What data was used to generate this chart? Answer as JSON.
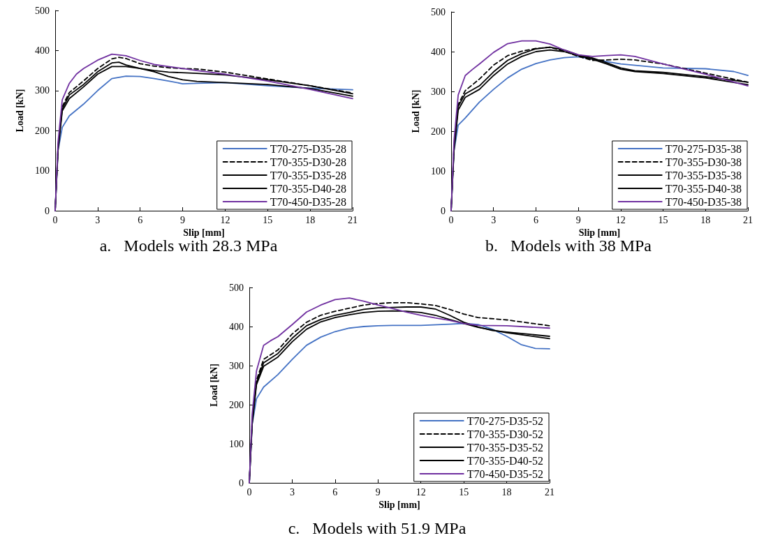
{
  "chart_data": [
    {
      "type": "line",
      "title": "a.   Models with 28.3 MPa",
      "xlabel": "Slip [mm]",
      "ylabel": "Load [kN]",
      "xlim": [
        0,
        21
      ],
      "xticks": [
        0,
        3,
        6,
        9,
        12,
        15,
        18,
        21
      ],
      "ylim": [
        0,
        500
      ],
      "yticks": [
        0,
        100,
        200,
        300,
        400,
        500
      ],
      "grid": false,
      "legend": "bottom right",
      "marker": "none",
      "line_style": "solid",
      "series": [
        {
          "name": "T70-275-D35-28",
          "color": "#4472c4",
          "x": [
            0,
            0.2,
            0.5,
            1,
            2,
            3,
            4,
            5,
            6,
            7,
            8,
            9,
            10,
            12,
            15,
            18,
            21
          ],
          "values": [
            0,
            150,
            208,
            237,
            266,
            300,
            330,
            336,
            335,
            330,
            324,
            317,
            318,
            320,
            312,
            306,
            302
          ]
        },
        {
          "name": "T70-355-D30-28",
          "color": "#000000",
          "line_style": "dashed",
          "x": [
            0,
            0.2,
            0.5,
            1,
            2,
            3,
            4,
            4.5,
            5,
            6,
            7,
            8,
            9,
            10,
            12,
            15,
            18,
            21
          ],
          "values": [
            0,
            160,
            260,
            295,
            324,
            355,
            379,
            383,
            380,
            367,
            361,
            357,
            355,
            354,
            346,
            329,
            312,
            294
          ]
        },
        {
          "name": "T70-355-D35-28",
          "color": "#000000",
          "x": [
            0,
            0.2,
            0.5,
            1,
            2,
            3,
            4,
            4.5,
            5,
            6,
            7,
            8,
            10,
            12,
            15,
            18,
            21
          ],
          "values": [
            0,
            155,
            254,
            289,
            315,
            347,
            369,
            371,
            364,
            355,
            350,
            346,
            343,
            339,
            327,
            312,
            292
          ]
        },
        {
          "name": "T70-355-D40-28",
          "color": "#000000",
          "x": [
            0,
            0.2,
            0.5,
            1,
            2,
            3,
            4,
            5,
            6,
            7,
            8,
            9,
            10,
            12,
            15,
            18,
            21
          ],
          "values": [
            0,
            150,
            249,
            280,
            309,
            341,
            360,
            360,
            355,
            347,
            335,
            327,
            323,
            320,
            315,
            305,
            286
          ]
        },
        {
          "name": "T70-450-D35-28",
          "color": "#7030a0",
          "x": [
            0,
            0.2,
            0.5,
            1,
            1.5,
            2,
            3,
            4,
            5,
            6,
            7,
            8,
            9,
            10,
            12,
            15,
            18,
            21
          ],
          "values": [
            0,
            170,
            277,
            318,
            341,
            355,
            376,
            391,
            387,
            375,
            365,
            360,
            355,
            350,
            341,
            324,
            303,
            280
          ]
        }
      ]
    },
    {
      "type": "line",
      "title": "b.   Models with 38 MPa",
      "xlabel": "Slip [mm]",
      "ylabel": "Load [kN]",
      "xlim": [
        0,
        21
      ],
      "xticks": [
        0,
        3,
        6,
        9,
        12,
        15,
        18,
        21
      ],
      "ylim": [
        0,
        500
      ],
      "yticks": [
        0,
        100,
        200,
        300,
        400,
        500
      ],
      "grid": false,
      "legend": "bottom right",
      "marker": "none",
      "line_style": "solid",
      "series": [
        {
          "name": "T70-275-D35-38",
          "color": "#4472c4",
          "x": [
            0,
            0.2,
            0.5,
            1,
            2,
            3,
            4,
            5,
            6,
            7,
            8,
            9,
            10,
            12,
            15,
            18,
            20,
            21
          ],
          "values": [
            0,
            150,
            215,
            233,
            273,
            305,
            334,
            356,
            370,
            379,
            385,
            387,
            381,
            369,
            359,
            357,
            350,
            340
          ]
        },
        {
          "name": "T70-355-D30-38",
          "color": "#000000",
          "line_style": "dashed",
          "x": [
            0,
            0.2,
            0.5,
            1,
            2,
            3,
            4,
            5,
            6,
            7,
            8,
            9,
            10,
            11,
            12,
            13,
            15,
            18,
            21
          ],
          "values": [
            0,
            160,
            267,
            302,
            331,
            366,
            390,
            401,
            408,
            411,
            401,
            388,
            378,
            379,
            381,
            379,
            369,
            346,
            323
          ]
        },
        {
          "name": "T70-355-D35-38",
          "color": "#000000",
          "x": [
            0,
            0.2,
            0.5,
            1,
            2,
            3,
            4,
            5,
            6,
            7,
            8,
            9,
            10,
            11,
            12,
            13,
            15,
            18,
            21
          ],
          "values": [
            0,
            155,
            262,
            294,
            314,
            349,
            378,
            395,
            407,
            411,
            404,
            392,
            384,
            372,
            359,
            352,
            348,
            337,
            323
          ]
        },
        {
          "name": "T70-355-D40-38",
          "color": "#000000",
          "x": [
            0,
            0.2,
            0.5,
            1,
            2,
            3,
            4,
            5,
            6,
            7,
            8,
            9,
            10,
            11,
            12,
            13,
            15,
            18,
            21
          ],
          "values": [
            0,
            150,
            253,
            285,
            305,
            340,
            369,
            388,
            400,
            404,
            400,
            390,
            381,
            369,
            356,
            350,
            345,
            334,
            317
          ]
        },
        {
          "name": "T70-450-D35-38",
          "color": "#7030a0",
          "x": [
            0,
            0.2,
            0.5,
            1,
            1.5,
            2,
            3,
            4,
            5,
            6,
            7,
            8,
            9,
            10,
            11,
            12,
            13,
            15,
            18,
            21
          ],
          "values": [
            0,
            175,
            291,
            340,
            355,
            369,
            398,
            420,
            427,
            427,
            419,
            404,
            392,
            388,
            390,
            392,
            388,
            369,
            343,
            314
          ]
        }
      ]
    },
    {
      "type": "line",
      "title": "c.   Models with 51.9 MPa",
      "xlabel": "Slip [mm]",
      "ylabel": "Load [kN]",
      "xlim": [
        0,
        21
      ],
      "xticks": [
        0,
        3,
        6,
        9,
        12,
        15,
        18,
        21
      ],
      "ylim": [
        0,
        500
      ],
      "yticks": [
        0,
        100,
        200,
        300,
        400,
        500
      ],
      "grid": false,
      "legend": "bottom right",
      "marker": "none",
      "line_style": "solid",
      "series": [
        {
          "name": "T70-275-D35-52",
          "color": "#4472c4",
          "x": [
            0,
            0.2,
            0.5,
            1,
            2,
            3,
            4,
            5,
            6,
            7,
            8,
            9,
            10,
            12,
            14,
            15,
            16,
            17,
            18,
            19,
            20,
            21
          ],
          "values": [
            0,
            150,
            215,
            245,
            277,
            316,
            352,
            373,
            387,
            396,
            400,
            402,
            403,
            403,
            406,
            408,
            405,
            393,
            375,
            354,
            344,
            343
          ]
        },
        {
          "name": "T70-355-D30-52",
          "color": "#000000",
          "line_style": "dashed",
          "x": [
            0,
            0.2,
            0.5,
            1,
            2,
            3,
            4,
            5,
            6,
            7,
            8,
            9,
            10,
            11,
            12,
            13,
            14,
            15,
            16,
            18,
            21
          ],
          "values": [
            0,
            160,
            262,
            316,
            340,
            381,
            411,
            429,
            439,
            447,
            455,
            459,
            461,
            461,
            458,
            454,
            444,
            432,
            423,
            417,
            402
          ]
        },
        {
          "name": "T70-355-D35-52",
          "color": "#000000",
          "x": [
            0,
            0.2,
            0.5,
            1,
            2,
            3,
            4,
            5,
            6,
            7,
            8,
            9,
            10,
            11,
            12,
            13,
            14,
            15,
            16,
            17,
            18,
            21
          ],
          "values": [
            0,
            155,
            256,
            307,
            331,
            370,
            402,
            418,
            429,
            436,
            444,
            448,
            449,
            450,
            450,
            445,
            429,
            411,
            399,
            390,
            386,
            375
          ]
        },
        {
          "name": "T70-355-D40-52",
          "color": "#000000",
          "x": [
            0,
            0.2,
            0.5,
            1,
            2,
            3,
            4,
            5,
            6,
            7,
            8,
            9,
            10,
            11,
            12,
            13,
            14,
            15,
            16,
            18,
            21
          ],
          "values": [
            0,
            150,
            251,
            298,
            322,
            361,
            393,
            412,
            423,
            430,
            436,
            439,
            440,
            439,
            436,
            429,
            418,
            408,
            398,
            384,
            369
          ]
        },
        {
          "name": "T70-450-D35-52",
          "color": "#7030a0",
          "x": [
            0,
            0.2,
            0.5,
            1,
            1.5,
            2,
            3,
            4,
            5,
            6,
            7,
            8,
            9,
            10,
            11,
            12,
            13,
            14,
            15,
            16,
            18,
            21
          ],
          "values": [
            0,
            175,
            286,
            352,
            364,
            374,
            405,
            437,
            455,
            469,
            473,
            465,
            455,
            446,
            437,
            429,
            422,
            416,
            408,
            403,
            402,
            396
          ]
        }
      ]
    }
  ]
}
